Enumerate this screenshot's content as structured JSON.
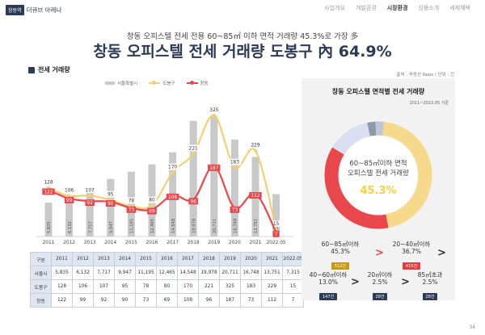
{
  "logo": {
    "box": "창동역",
    "text": "더큐브 아레나"
  },
  "nav": [
    "사업개요",
    "개발환경",
    "시장환경",
    "상품소개",
    "세제혜택"
  ],
  "subtitle": "창동 오피스텔 전세 전용 60~85㎡ 이하 면적 거래량 45.3%로 가장 多",
  "title": {
    "main": "창동 오피스텔 전세 거래량 도봉구 內 ",
    "pct": "64.9%"
  },
  "section_label": "전세 거래량",
  "source": "출처 : 부동산 Reps / 단위 : 건",
  "legend": [
    {
      "label": "서울특별시",
      "color": "#c9c9c9"
    },
    {
      "label": "도봉구",
      "color": "#f2cf73"
    },
    {
      "label": "창동",
      "color": "#e8474c"
    }
  ],
  "colors": {
    "seoul": "#c9c9c9",
    "dobong": "#f2cf73",
    "changdong": "#e8474c",
    "navy": "#2b3a55"
  },
  "chart_data": {
    "type": "bar+line",
    "categories": [
      "2011",
      "2012",
      "2013",
      "2014",
      "2015",
      "2016",
      "2017",
      "2018",
      "2019",
      "2020",
      "2021",
      "2022.05"
    ],
    "series": [
      {
        "name": "서울특별시",
        "type": "bar",
        "values": [
          5835,
          6132,
          7717,
          9947,
          11195,
          12465,
          14548,
          19978,
          20711,
          16748,
          13751,
          7315
        ]
      },
      {
        "name": "도봉구",
        "type": "line",
        "values": [
          128,
          106,
          107,
          95,
          78,
          80,
          170,
          221,
          325,
          183,
          229,
          15
        ]
      },
      {
        "name": "창동",
        "type": "line",
        "values": [
          122,
          99,
          92,
          90,
          73,
          69,
          108,
          96,
          187,
          73,
          112,
          7
        ]
      }
    ],
    "bar_labels": [
      "5,835",
      "6,132",
      "7,717",
      "9,947",
      "11,195",
      "12,465",
      "14,548",
      "19,978",
      "20,711",
      "16,748",
      "13,751",
      "7,315"
    ],
    "ylim_bars": [
      0,
      23000
    ],
    "ylim_lines": [
      0,
      360
    ]
  },
  "table": {
    "header": [
      "구분",
      "2011",
      "2012",
      "2013",
      "2014",
      "2015",
      "2016",
      "2017",
      "2018",
      "2019",
      "2020",
      "2021",
      "2022.05"
    ],
    "rows": [
      [
        "서울시",
        "5,835",
        "6,132",
        "7,717",
        "9,947",
        "11,195",
        "12,465",
        "14,548",
        "19,978",
        "20,711",
        "16,748",
        "13,751",
        "7,315"
      ],
      [
        "도봉구",
        "128",
        "106",
        "107",
        "95",
        "78",
        "80",
        "170",
        "221",
        "325",
        "183",
        "229",
        "15"
      ],
      [
        "창동",
        "122",
        "99",
        "92",
        "90",
        "73",
        "69",
        "108",
        "96",
        "187",
        "73",
        "112",
        "7"
      ]
    ]
  },
  "panel": {
    "title": "창동 오피스텔 면적별 전세 거래량",
    "period": "2011~2022.05 기준",
    "center_label": "60~85㎡이하 면적\n오피스텔 전세 거래량",
    "center_value": "45.3%",
    "donut": [
      {
        "name": "60~85㎡이하",
        "value": 45.3,
        "color": "#f7d98b"
      },
      {
        "name": "20~40㎡이하",
        "value": 36.7,
        "color": "#e8474c"
      },
      {
        "name": "40~60㎡이하",
        "value": 13.0,
        "color": "#d9dff0"
      },
      {
        "name": "20㎡이하",
        "value": 2.5,
        "color": "#8f9aa8"
      },
      {
        "name": "85㎡초과",
        "value": 2.5,
        "color": "#bcc6d8"
      }
    ],
    "cats": [
      {
        "name": "60~85㎡이하",
        "pct": "45.3%",
        "count": "512건",
        "badge": "#c49a14"
      },
      {
        "name": "20~40㎡이하",
        "pct": "36.7%",
        "count": "415건",
        "badge": "#e0403f"
      },
      {
        "name": "40~60㎡이하",
        "pct": "13.0%",
        "count": "147건",
        "badge": "#2b3a55"
      },
      {
        "name": "20㎡이하",
        "pct": "2.5%",
        "count": "28건",
        "badge": "#2b3a55"
      },
      {
        "name": "85㎡초과",
        "pct": "2.5%",
        "count": "28건",
        "badge": "#2b3a55"
      }
    ],
    "arrows": [
      ">",
      ">",
      ">",
      ">"
    ]
  },
  "page_number": "34"
}
